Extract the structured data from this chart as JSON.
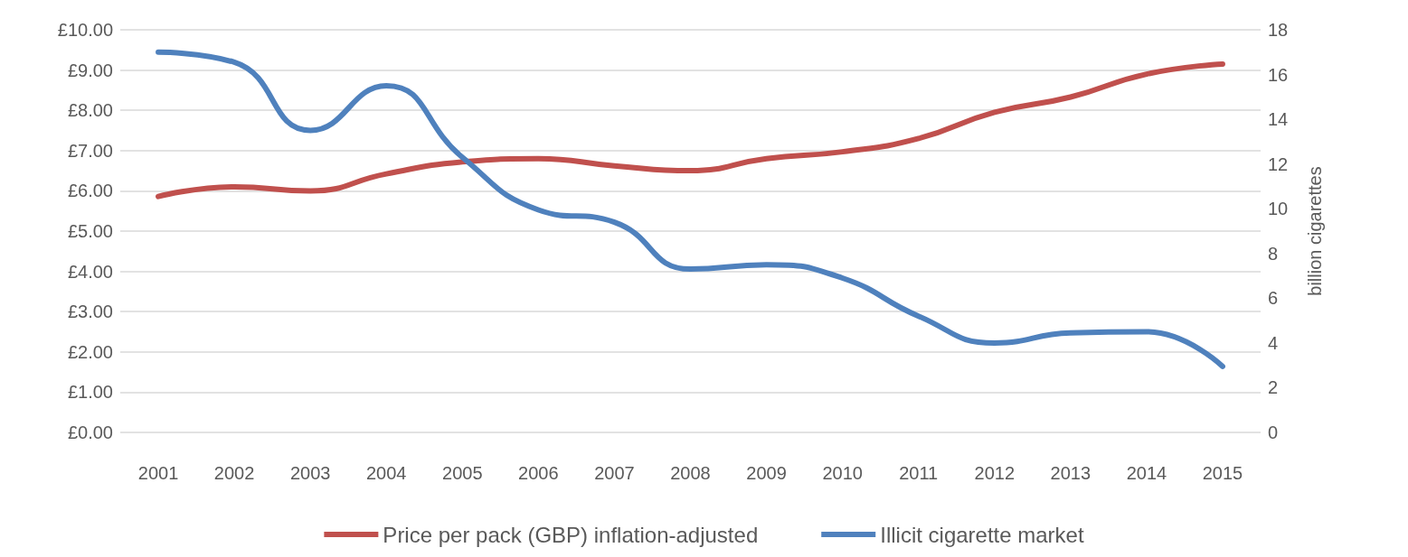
{
  "chart_data": {
    "type": "line",
    "categories": [
      "2001",
      "2002",
      "2003",
      "2004",
      "2005",
      "2006",
      "2007",
      "2008",
      "2009",
      "2010",
      "2011",
      "2012",
      "2013",
      "2014",
      "2015"
    ],
    "y2label": "billion cigarettes",
    "ylim": [
      0,
      10
    ],
    "yticks": [
      {
        "value": 0,
        "label": "£0.00"
      },
      {
        "value": 1,
        "label": "£1.00"
      },
      {
        "value": 2,
        "label": "£2.00"
      },
      {
        "value": 3,
        "label": "£3.00"
      },
      {
        "value": 4,
        "label": "£4.00"
      },
      {
        "value": 5,
        "label": "£5.00"
      },
      {
        "value": 6,
        "label": "£6.00"
      },
      {
        "value": 7,
        "label": "£7.00"
      },
      {
        "value": 8,
        "label": "£8.00"
      },
      {
        "value": 9,
        "label": "£9.00"
      },
      {
        "value": 10,
        "label": "£10.00"
      }
    ],
    "y2lim": [
      0,
      18
    ],
    "y2ticks": [
      0,
      2,
      4,
      6,
      8,
      10,
      12,
      14,
      16,
      18
    ],
    "grid": "y",
    "legend": "bottom",
    "marker": "none",
    "line_style": "solid",
    "series": [
      {
        "name": "Price per pack (GBP) inflation-adjusted",
        "color": "#c0504d",
        "values": [
          5.86,
          6.1,
          6.0,
          6.42,
          6.72,
          6.8,
          6.62,
          6.5,
          6.8,
          6.97,
          7.3,
          7.95,
          8.33,
          8.9,
          9.15
        ]
      },
      {
        "name": "Illicit cigarette market",
        "color": "#4f81bd",
        "axis": "y2",
        "values": [
          17.0,
          16.55,
          13.5,
          15.5,
          12.3,
          9.95,
          9.4,
          7.3,
          7.5,
          6.9,
          5.2,
          4.0,
          4.45,
          4.5,
          2.95
        ]
      }
    ]
  }
}
